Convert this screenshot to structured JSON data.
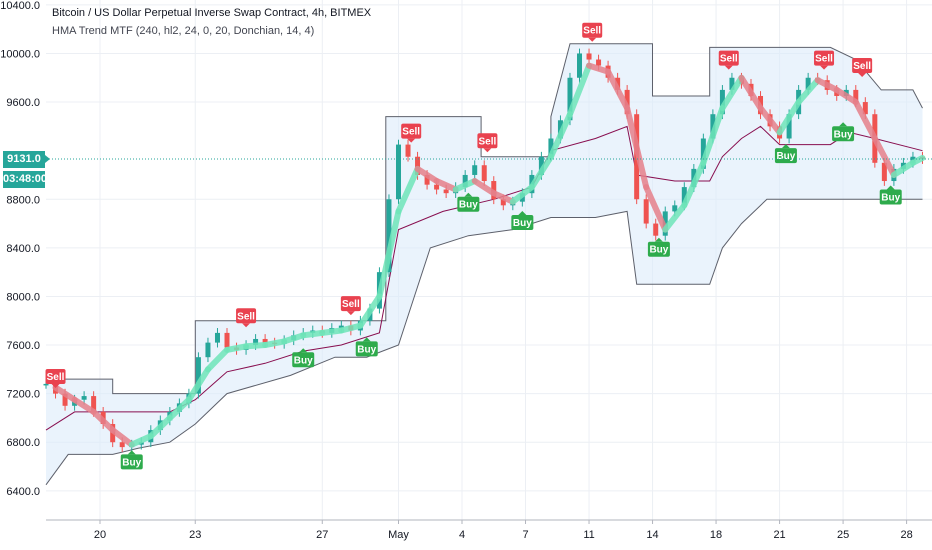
{
  "header": {
    "title": "Bitcoin / US Dollar Perpetual Inverse Swap Contract, 4h, BITMEX",
    "indicator": "HMA Trend MTF (240, hl2, 24, 0, 20, Donchian, 14, 4)"
  },
  "price_scale": {
    "current_price": "9131.0",
    "countdown": "03:48:00"
  },
  "colors": {
    "up": "#26a69a",
    "down": "#ef5350",
    "hma_up": "#6fe4b8",
    "hma_down": "#e57f8a",
    "band_fill": "#dcebfa",
    "band_line": "#5d606b",
    "mid_line": "#880e4f",
    "buy": "#2eab4c",
    "sell": "#e9424f",
    "grid": "#eceff4"
  },
  "chart_data": {
    "type": "line",
    "title": "Bitcoin / US Dollar Perpetual Inverse Swap Contract, 4h, BITMEX",
    "xlabel": "",
    "ylabel": "",
    "ylim": [
      6160,
      10440
    ],
    "xlim": [
      18.3,
      28.8
    ],
    "y_ticks": [
      6400,
      6800,
      7200,
      7600,
      8000,
      8400,
      8800,
      9600,
      10000,
      10400
    ],
    "x_ticks": [
      {
        "x": 20,
        "label": "20"
      },
      {
        "x": 23,
        "label": "23"
      },
      {
        "x": 27,
        "label": "27"
      },
      {
        "x": 29.4,
        "label": "May"
      },
      {
        "x": 31.4,
        "label": "4"
      },
      {
        "x": 33.4,
        "label": "7"
      },
      {
        "x": 35.4,
        "label": "11"
      },
      {
        "x": 37.4,
        "label": "14"
      },
      {
        "x": 39.4,
        "label": "18"
      },
      {
        "x": 41.4,
        "label": "21"
      },
      {
        "x": 43.4,
        "label": "25"
      },
      {
        "x": 45.4,
        "label": "28"
      }
    ],
    "x_scale_note": "x is a day index on the chart's time axis",
    "grid": true,
    "price": [
      [
        18.3,
        7280
      ],
      [
        18.6,
        7200
      ],
      [
        18.9,
        7100
      ],
      [
        19.2,
        7150
      ],
      [
        19.5,
        7180
      ],
      [
        19.8,
        7050
      ],
      [
        20.1,
        6950
      ],
      [
        20.4,
        6800
      ],
      [
        20.7,
        6760
      ],
      [
        21.0,
        6780
      ],
      [
        21.3,
        6800
      ],
      [
        21.6,
        6900
      ],
      [
        21.9,
        6980
      ],
      [
        22.2,
        7050
      ],
      [
        22.5,
        7120
      ],
      [
        22.8,
        7200
      ],
      [
        23.1,
        7500
      ],
      [
        23.4,
        7620
      ],
      [
        23.7,
        7700
      ],
      [
        24.0,
        7580
      ],
      [
        24.3,
        7560
      ],
      [
        24.6,
        7600
      ],
      [
        24.9,
        7650
      ],
      [
        25.2,
        7620
      ],
      [
        25.5,
        7610
      ],
      [
        25.8,
        7640
      ],
      [
        26.1,
        7680
      ],
      [
        26.4,
        7700
      ],
      [
        26.7,
        7720
      ],
      [
        27.0,
        7700
      ],
      [
        27.3,
        7740
      ],
      [
        27.6,
        7760
      ],
      [
        27.9,
        7720
      ],
      [
        28.2,
        7800
      ],
      [
        28.5,
        7900
      ],
      [
        28.8,
        8200
      ],
      [
        29.1,
        8800
      ],
      [
        29.4,
        9250
      ],
      [
        29.7,
        9150
      ],
      [
        30.0,
        9000
      ],
      [
        30.3,
        8920
      ],
      [
        30.6,
        8880
      ],
      [
        30.9,
        8850
      ],
      [
        31.2,
        8900
      ],
      [
        31.5,
        9000
      ],
      [
        31.8,
        9080
      ],
      [
        32.1,
        8950
      ],
      [
        32.4,
        8800
      ],
      [
        32.7,
        8750
      ],
      [
        33.0,
        8780
      ],
      [
        33.3,
        8850
      ],
      [
        33.6,
        9000
      ],
      [
        33.9,
        9150
      ],
      [
        34.2,
        9300
      ],
      [
        34.5,
        9450
      ],
      [
        34.8,
        9800
      ],
      [
        35.1,
        10000
      ],
      [
        35.4,
        9950
      ],
      [
        35.7,
        9900
      ],
      [
        36.0,
        9800
      ],
      [
        36.3,
        9700
      ],
      [
        36.6,
        9500
      ],
      [
        36.9,
        8800
      ],
      [
        37.2,
        8600
      ],
      [
        37.5,
        8500
      ],
      [
        37.8,
        8700
      ],
      [
        38.1,
        8750
      ],
      [
        38.4,
        8900
      ],
      [
        38.7,
        9050
      ],
      [
        39.0,
        9300
      ],
      [
        39.3,
        9500
      ],
      [
        39.6,
        9700
      ],
      [
        39.9,
        9800
      ],
      [
        40.2,
        9750
      ],
      [
        40.5,
        9650
      ],
      [
        40.8,
        9500
      ],
      [
        41.1,
        9400
      ],
      [
        41.4,
        9300
      ],
      [
        41.7,
        9500
      ],
      [
        42.0,
        9700
      ],
      [
        42.3,
        9800
      ],
      [
        42.6,
        9780
      ],
      [
        42.9,
        9700
      ],
      [
        43.2,
        9650
      ],
      [
        43.5,
        9700
      ],
      [
        43.8,
        9600
      ],
      [
        44.1,
        9500
      ],
      [
        44.4,
        9100
      ],
      [
        44.7,
        8950
      ],
      [
        45.0,
        9050
      ],
      [
        45.3,
        9100
      ],
      [
        45.6,
        9150
      ],
      [
        45.9,
        9131
      ]
    ],
    "hma": [
      [
        18.6,
        7250
      ],
      [
        19.2,
        7150
      ],
      [
        19.8,
        7050
      ],
      [
        20.4,
        6900
      ],
      [
        21.0,
        6780
      ],
      [
        21.6,
        6850
      ],
      [
        22.2,
        7000
      ],
      [
        22.8,
        7150
      ],
      [
        23.4,
        7400
      ],
      [
        24.0,
        7560
      ],
      [
        24.6,
        7590
      ],
      [
        25.2,
        7600
      ],
      [
        25.8,
        7630
      ],
      [
        26.4,
        7680
      ],
      [
        27.0,
        7700
      ],
      [
        27.6,
        7720
      ],
      [
        28.2,
        7760
      ],
      [
        28.8,
        8000
      ],
      [
        29.4,
        8700
      ],
      [
        30.0,
        9050
      ],
      [
        30.6,
        8950
      ],
      [
        31.2,
        8880
      ],
      [
        31.8,
        8950
      ],
      [
        32.4,
        8850
      ],
      [
        33.0,
        8780
      ],
      [
        33.6,
        8900
      ],
      [
        34.2,
        9150
      ],
      [
        34.8,
        9500
      ],
      [
        35.4,
        9900
      ],
      [
        36.0,
        9850
      ],
      [
        36.6,
        9550
      ],
      [
        37.2,
        8900
      ],
      [
        37.8,
        8550
      ],
      [
        38.4,
        8750
      ],
      [
        39.0,
        9100
      ],
      [
        39.6,
        9550
      ],
      [
        40.2,
        9800
      ],
      [
        40.8,
        9550
      ],
      [
        41.4,
        9350
      ],
      [
        42.0,
        9600
      ],
      [
        42.6,
        9780
      ],
      [
        43.2,
        9700
      ],
      [
        43.8,
        9600
      ],
      [
        44.4,
        9300
      ],
      [
        45.0,
        9000
      ],
      [
        45.6,
        9100
      ],
      [
        45.9,
        9140
      ]
    ],
    "band_upper": [
      [
        18.3,
        7320
      ],
      [
        20.4,
        7320
      ],
      [
        20.4,
        7200
      ],
      [
        23.0,
        7200
      ],
      [
        23.0,
        7800
      ],
      [
        27.2,
        7800
      ],
      [
        27.2,
        7800
      ],
      [
        29.0,
        7800
      ],
      [
        29.0,
        9480
      ],
      [
        32.0,
        9480
      ],
      [
        32.0,
        9150
      ],
      [
        34.2,
        9150
      ],
      [
        34.2,
        9480
      ],
      [
        34.8,
        10080
      ],
      [
        37.4,
        10080
      ],
      [
        37.4,
        9650
      ],
      [
        39.2,
        9650
      ],
      [
        39.2,
        10050
      ],
      [
        43.0,
        10050
      ],
      [
        43.8,
        9950
      ],
      [
        44.6,
        9700
      ],
      [
        45.6,
        9700
      ],
      [
        45.9,
        9550
      ]
    ],
    "band_lower": [
      [
        18.3,
        6450
      ],
      [
        19.0,
        6700
      ],
      [
        20.4,
        6700
      ],
      [
        21.2,
        6750
      ],
      [
        22.2,
        6800
      ],
      [
        23.0,
        6950
      ],
      [
        24.0,
        7200
      ],
      [
        26.0,
        7350
      ],
      [
        27.4,
        7500
      ],
      [
        28.4,
        7500
      ],
      [
        29.4,
        7600
      ],
      [
        29.9,
        8000
      ],
      [
        30.4,
        8400
      ],
      [
        31.6,
        8500
      ],
      [
        33.0,
        8550
      ],
      [
        34.2,
        8650
      ],
      [
        35.6,
        8650
      ],
      [
        36.6,
        8700
      ],
      [
        36.9,
        8100
      ],
      [
        39.2,
        8100
      ],
      [
        39.6,
        8400
      ],
      [
        40.2,
        8600
      ],
      [
        41.0,
        8800
      ],
      [
        43.0,
        8800
      ],
      [
        43.8,
        8800
      ],
      [
        45.9,
        8800
      ]
    ],
    "band_mid": [
      [
        18.3,
        6900
      ],
      [
        19.2,
        7050
      ],
      [
        20.4,
        7050
      ],
      [
        22.2,
        7050
      ],
      [
        23.0,
        7150
      ],
      [
        24.0,
        7380
      ],
      [
        25.2,
        7450
      ],
      [
        26.4,
        7550
      ],
      [
        27.6,
        7600
      ],
      [
        28.8,
        7700
      ],
      [
        29.4,
        8550
      ],
      [
        30.8,
        8700
      ],
      [
        32.4,
        8800
      ],
      [
        33.6,
        8900
      ],
      [
        34.2,
        9200
      ],
      [
        35.6,
        9300
      ],
      [
        36.6,
        9400
      ],
      [
        36.9,
        9000
      ],
      [
        38.1,
        8950
      ],
      [
        39.2,
        8950
      ],
      [
        39.6,
        9150
      ],
      [
        40.2,
        9300
      ],
      [
        40.8,
        9400
      ],
      [
        41.4,
        9250
      ],
      [
        43.0,
        9250
      ],
      [
        43.6,
        9350
      ],
      [
        44.4,
        9300
      ],
      [
        45.9,
        9200
      ]
    ],
    "signals": [
      {
        "type": "Sell",
        "x": 18.6,
        "y": 7230
      },
      {
        "type": "Buy",
        "x": 21.0,
        "y": 6750
      },
      {
        "type": "Sell",
        "x": 24.6,
        "y": 7730
      },
      {
        "type": "Buy",
        "x": 26.4,
        "y": 7590
      },
      {
        "type": "Sell",
        "x": 27.9,
        "y": 7830
      },
      {
        "type": "Buy",
        "x": 28.4,
        "y": 7680
      },
      {
        "type": "Sell",
        "x": 29.8,
        "y": 9250
      },
      {
        "type": "Buy",
        "x": 31.6,
        "y": 8870
      },
      {
        "type": "Sell",
        "x": 32.2,
        "y": 9170
      },
      {
        "type": "Buy",
        "x": 33.3,
        "y": 8720
      },
      {
        "type": "Sell",
        "x": 35.5,
        "y": 10080
      },
      {
        "type": "Buy",
        "x": 37.6,
        "y": 8500
      },
      {
        "type": "Sell",
        "x": 39.8,
        "y": 9850
      },
      {
        "type": "Buy",
        "x": 41.6,
        "y": 9270
      },
      {
        "type": "Sell",
        "x": 42.8,
        "y": 9850
      },
      {
        "type": "Buy",
        "x": 43.4,
        "y": 9450
      },
      {
        "type": "Sell",
        "x": 44.0,
        "y": 9790
      },
      {
        "type": "Buy",
        "x": 44.9,
        "y": 8930
      }
    ]
  }
}
